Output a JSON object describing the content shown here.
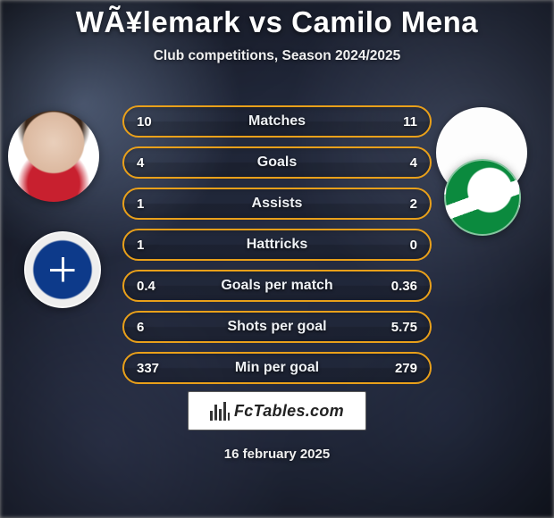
{
  "title": "WÃ¥lemark vs Camilo Mena",
  "subtitle": "Club competitions, Season 2024/2025",
  "date": "16 february 2025",
  "accent_color": "#e9a01a",
  "row_bg_top": "rgba(0,0,0,0.10)",
  "row_bg_bottom": "rgba(0,0,0,0.24)",
  "players": {
    "p1": {
      "name": "WÃ¥lemark",
      "club": "Lech Poznań"
    },
    "p2": {
      "name": "Camilo Mena",
      "club": "Lechia Gdańsk"
    }
  },
  "stats": [
    {
      "label": "Matches",
      "p1": "10",
      "p2": "11"
    },
    {
      "label": "Goals",
      "p1": "4",
      "p2": "4"
    },
    {
      "label": "Assists",
      "p1": "1",
      "p2": "2"
    },
    {
      "label": "Hattricks",
      "p1": "1",
      "p2": "0"
    },
    {
      "label": "Goals per match",
      "p1": "0.4",
      "p2": "0.36"
    },
    {
      "label": "Shots per goal",
      "p1": "6",
      "p2": "5.75"
    },
    {
      "label": "Min per goal",
      "p1": "337",
      "p2": "279"
    }
  ],
  "source_logo_text": "FcTables.com"
}
